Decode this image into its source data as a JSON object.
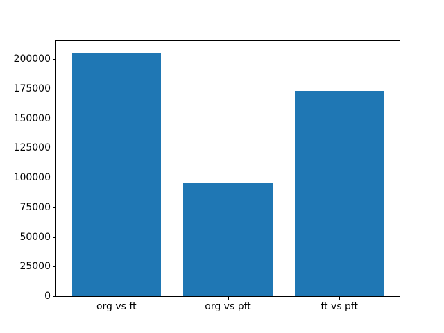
{
  "chart_data": {
    "type": "bar",
    "title": "",
    "xlabel": "",
    "ylabel": "",
    "categories": [
      "org vs ft",
      "org vs pft",
      "ft vs pft"
    ],
    "values": [
      205000,
      95400,
      173000
    ],
    "yticks": [
      0,
      25000,
      50000,
      75000,
      100000,
      125000,
      150000,
      175000,
      200000
    ],
    "ylim": [
      0,
      215250
    ],
    "xlim": [
      -0.54,
      2.54
    ],
    "bar_width": 0.8,
    "grid": false,
    "legend": null,
    "bar_color": "#1f77b4",
    "axis_color": "#000000",
    "text_color": "#000000",
    "background_color": "#ffffff"
  }
}
